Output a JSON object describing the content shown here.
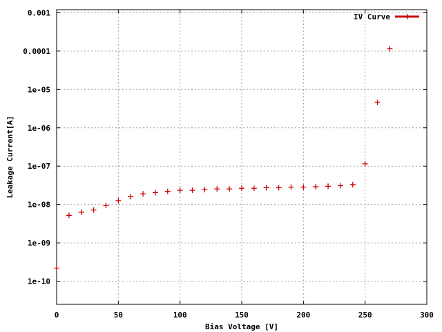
{
  "chart_data": {
    "type": "scatter",
    "title": "",
    "xlabel": "Bias Voltage [V]",
    "ylabel": "Leakage Current[A]",
    "xlim": [
      0,
      300
    ],
    "ylim": [
      2.5e-11,
      0.0012
    ],
    "y_scale": "log",
    "grid": true,
    "legend_position": "top-right",
    "x_ticks": [
      {
        "value": 0,
        "label": "0"
      },
      {
        "value": 50,
        "label": "50"
      },
      {
        "value": 100,
        "label": "100"
      },
      {
        "value": 150,
        "label": "150"
      },
      {
        "value": 200,
        "label": "200"
      },
      {
        "value": 250,
        "label": "250"
      },
      {
        "value": 300,
        "label": "300"
      }
    ],
    "y_ticks": [
      {
        "value": 1e-10,
        "label": "1e-10"
      },
      {
        "value": 1e-09,
        "label": "1e-09"
      },
      {
        "value": 1e-08,
        "label": "1e-08"
      },
      {
        "value": 1e-07,
        "label": "1e-07"
      },
      {
        "value": 1e-06,
        "label": "1e-06"
      },
      {
        "value": 1e-05,
        "label": "1e-05"
      },
      {
        "value": 0.0001,
        "label": "0.0001"
      },
      {
        "value": 0.001,
        "label": "0.001"
      }
    ],
    "series": [
      {
        "name": "IV Curve",
        "color": "#cc0000",
        "marker": "plus",
        "x": [
          0,
          10,
          20,
          30,
          40,
          50,
          60,
          70,
          80,
          90,
          100,
          110,
          120,
          130,
          140,
          150,
          160,
          170,
          180,
          190,
          200,
          210,
          220,
          230,
          240,
          250,
          260,
          270
        ],
        "y": [
          2.2e-10,
          5.2e-09,
          6.3e-09,
          7.2e-09,
          9.4e-09,
          1.27e-08,
          1.6e-08,
          1.9e-08,
          2.05e-08,
          2.2e-08,
          2.35e-08,
          2.35e-08,
          2.45e-08,
          2.55e-08,
          2.55e-08,
          2.65e-08,
          2.65e-08,
          2.75e-08,
          2.75e-08,
          2.85e-08,
          2.85e-08,
          2.9e-08,
          3e-08,
          3.1e-08,
          3.3e-08,
          1.15e-07,
          4.6e-06,
          0.000115
        ]
      }
    ]
  }
}
